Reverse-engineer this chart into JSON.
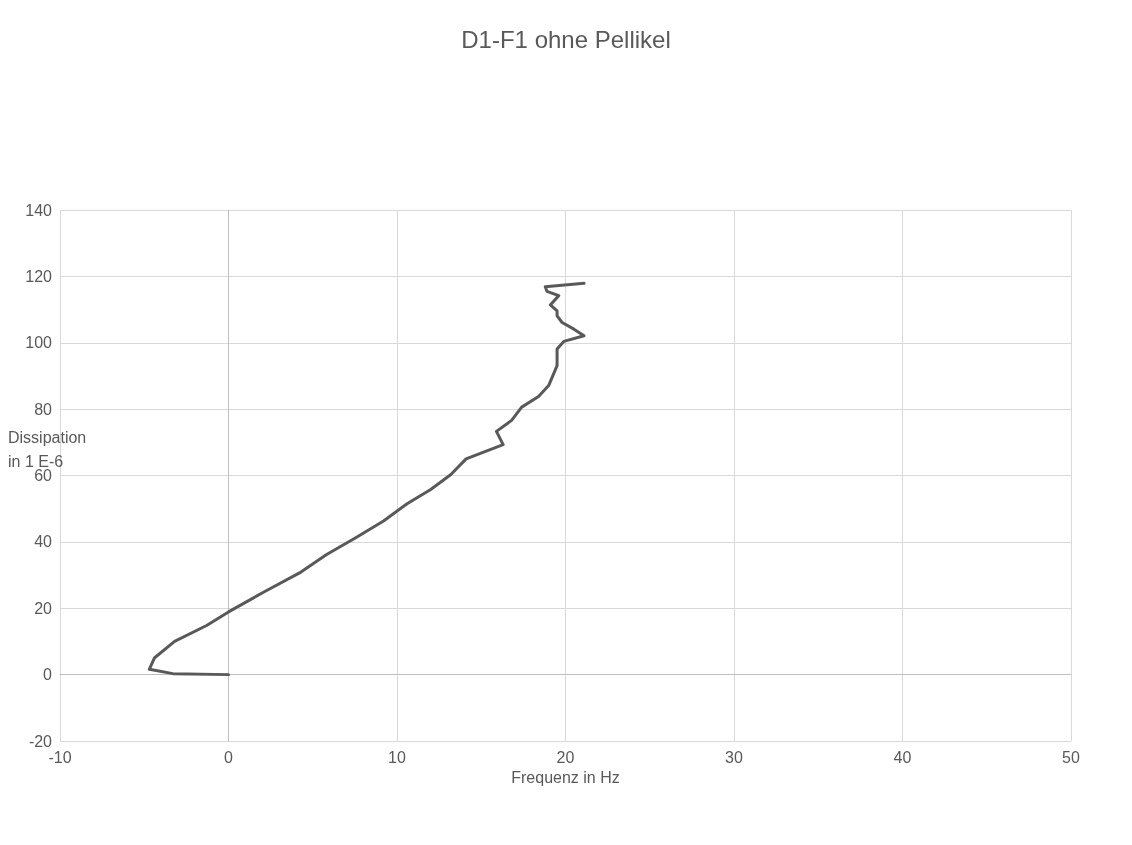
{
  "chart_data": {
    "type": "line",
    "title": "D1-F1 ohne Pellikel",
    "xlabel": "Frequenz in Hz",
    "ylabel": "Dissipation in 1 E-6",
    "xlim": [
      -10,
      50
    ],
    "xticks": [
      -10,
      0,
      10,
      20,
      30,
      40,
      50
    ],
    "ylim": [
      -20,
      140
    ],
    "yticks": [
      -20,
      0,
      20,
      40,
      60,
      80,
      100,
      120,
      140
    ],
    "grid": true,
    "marker": "none",
    "line_style": "solid",
    "series": [
      {
        "color": "#595959",
        "x": [
          0,
          -3.3,
          -4.7,
          -4.4,
          -3.2,
          -1.3,
          0,
          2.1,
          4.3,
          5.8,
          7.6,
          9.2,
          10.6,
          12.0,
          13.2,
          14.1,
          16.3,
          15.9,
          16.8,
          17.4,
          18.4,
          19.0,
          19.5,
          19.5,
          19.5,
          19.9,
          21.1,
          20.5,
          19.8,
          19.5,
          19.5,
          19.1,
          19.6,
          18.9,
          18.8,
          21.1
        ],
        "values": [
          0,
          0.3,
          1.6,
          5.0,
          10.0,
          14.8,
          18.9,
          24.9,
          30.9,
          36.1,
          41.4,
          46.3,
          51.5,
          55.8,
          60.3,
          65.0,
          69.3,
          73.3,
          76.6,
          80.6,
          83.8,
          87.1,
          93.1,
          95.6,
          98.1,
          100.4,
          102.1,
          104.1,
          106.1,
          108.1,
          109.6,
          111.4,
          114.2,
          115.5,
          116.9,
          117.9
        ]
      }
    ]
  }
}
